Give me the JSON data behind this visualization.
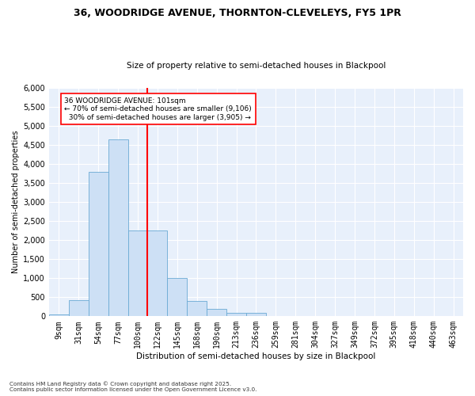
{
  "title1": "36, WOODRIDGE AVENUE, THORNTON-CLEVELEYS, FY5 1PR",
  "title2": "Size of property relative to semi-detached houses in Blackpool",
  "xlabel": "Distribution of semi-detached houses by size in Blackpool",
  "ylabel": "Number of semi-detached properties",
  "footer1": "Contains HM Land Registry data © Crown copyright and database right 2025.",
  "footer2": "Contains public sector information licensed under the Open Government Licence v3.0.",
  "property_label": "36 WOODRIDGE AVENUE: 101sqm",
  "smaller_pct": "70%",
  "smaller_count": "9,106",
  "larger_pct": "30%",
  "larger_count": "3,905",
  "bin_labels": [
    "9sqm",
    "31sqm",
    "54sqm",
    "77sqm",
    "100sqm",
    "122sqm",
    "145sqm",
    "168sqm",
    "190sqm",
    "213sqm",
    "236sqm",
    "259sqm",
    "281sqm",
    "304sqm",
    "327sqm",
    "349sqm",
    "372sqm",
    "395sqm",
    "418sqm",
    "440sqm",
    "463sqm"
  ],
  "bar_heights": [
    50,
    430,
    3800,
    4650,
    2250,
    2250,
    1000,
    400,
    200,
    100,
    100,
    0,
    0,
    0,
    0,
    0,
    0,
    0,
    0,
    0,
    0
  ],
  "bar_color": "#cde0f5",
  "bar_edge_color": "#6aaad4",
  "vline_color": "red",
  "annotation_box_edgecolor": "red",
  "background_color": "#e8f0fb",
  "grid_color": "white",
  "ylim": [
    0,
    6000
  ],
  "yticks": [
    0,
    500,
    1000,
    1500,
    2000,
    2500,
    3000,
    3500,
    4000,
    4500,
    5000,
    5500,
    6000
  ]
}
